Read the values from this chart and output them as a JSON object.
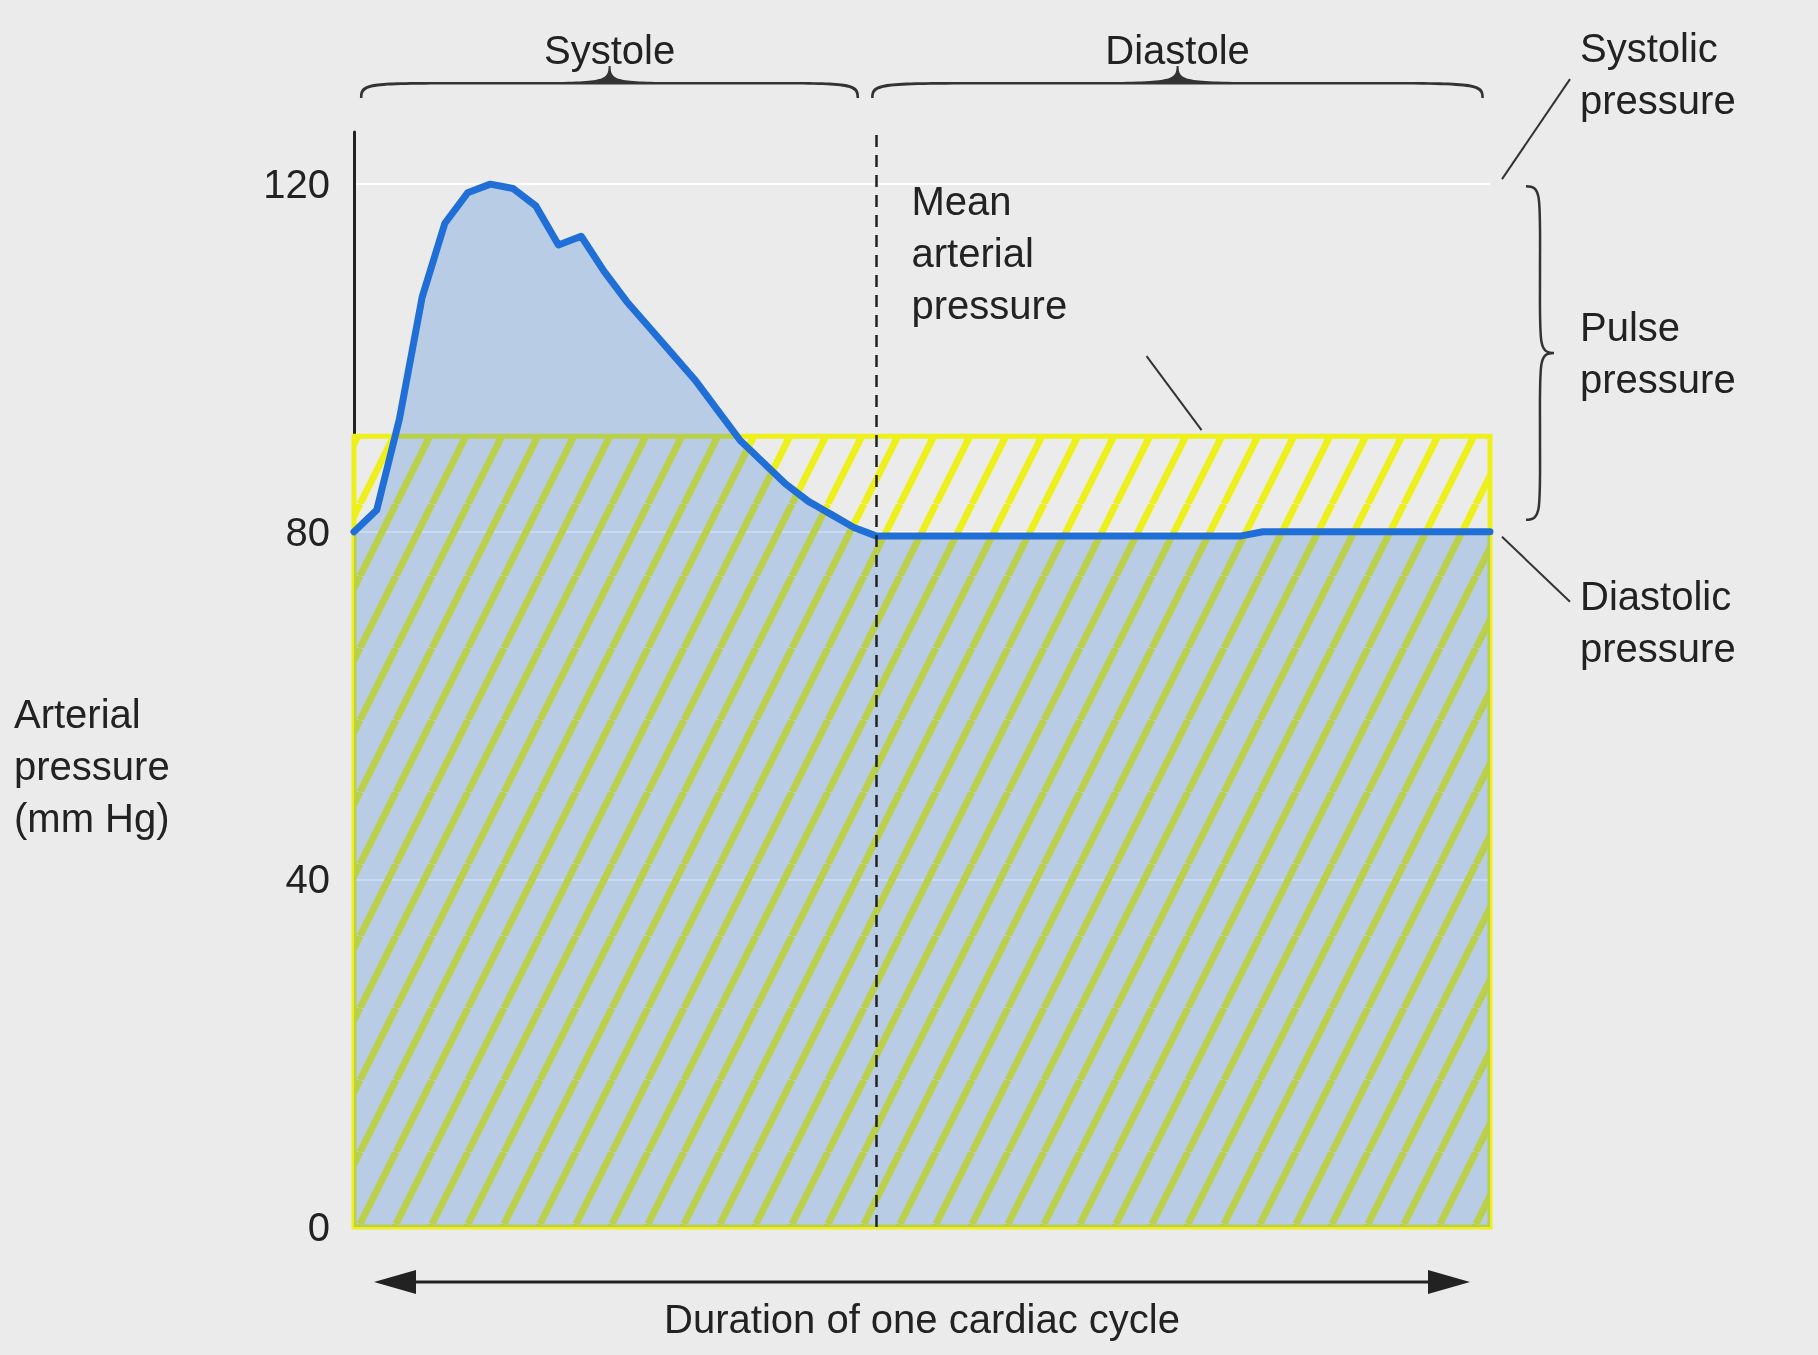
{
  "chart_data": {
    "type": "area",
    "xlabel": "Duration of one cardiac cycle",
    "ylabel": "Arterial pressure (mm Hg)",
    "categories": [
      null,
      null,
      null,
      null,
      null,
      null,
      null,
      null,
      null,
      null,
      null,
      null,
      null,
      null,
      null,
      null,
      null,
      null,
      null,
      null,
      null,
      null,
      null,
      null,
      null,
      null,
      null,
      null,
      null,
      null,
      null,
      null,
      null,
      null,
      null,
      null,
      null,
      null,
      null,
      null,
      null,
      null,
      null,
      null,
      null,
      null,
      null,
      null,
      null,
      null,
      null
    ],
    "values": [
      80,
      82.5,
      93,
      107,
      115.5,
      119,
      120,
      119.5,
      117.5,
      113,
      114,
      110,
      106.5,
      103.5,
      100.5,
      97.5,
      94,
      90.5,
      88,
      85.5,
      83.5,
      82,
      80.5,
      79.5,
      79.5,
      79.5,
      79.5,
      79.5,
      79.5,
      79.5,
      79.5,
      79.5,
      79.5,
      79.5,
      79.5,
      79.5,
      79.5,
      79.5,
      79.5,
      79.5,
      80,
      80,
      80,
      80,
      80,
      80,
      80,
      80,
      80,
      80,
      80
    ],
    "color": "#1f6fd6",
    "ylim": [
      0,
      126
    ],
    "yticks": [
      0,
      40,
      80,
      120
    ],
    "tick_labels": "y",
    "grid": "y",
    "bands": [
      {
        "axis": "y",
        "from": 0,
        "to": 91,
        "label": "Mean arterial pressure",
        "color": "#eef01c"
      }
    ],
    "annotations": [
      "Systole",
      "Diastole",
      "Systolic pressure",
      "Pulse pressure",
      "Diastolic pressure"
    ]
  }
}
